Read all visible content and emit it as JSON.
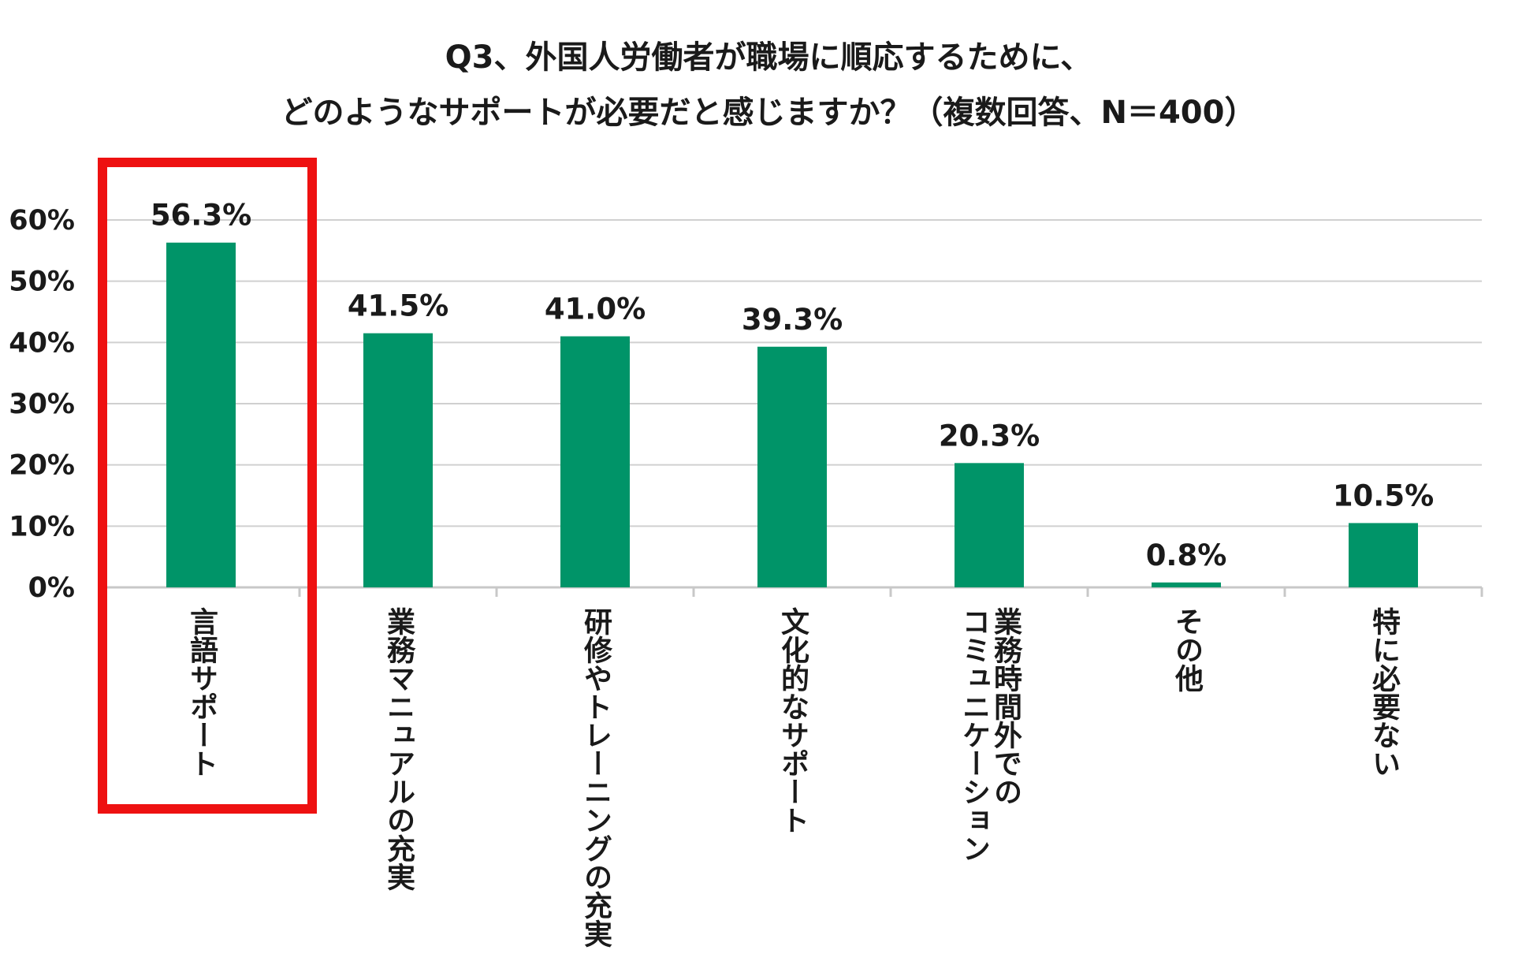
{
  "chart_data": {
    "type": "bar",
    "title_lines": [
      "Q3、外国人労働者が職場に順応するために、",
      "どのようなサポートが必要だと感じますか？（複数回答、N＝400）"
    ],
    "categories": [
      "言語サポート",
      "業務マニュアルの充実",
      "研修やトレーニングの充実",
      "文化的なサポート",
      "業務時間外でのコミュニケーション",
      "その他",
      "特に必要ない"
    ],
    "category_lines": [
      [
        "言語サポート"
      ],
      [
        "業務マニュアルの充実"
      ],
      [
        "研修やトレーニングの充実"
      ],
      [
        "文化的なサポート"
      ],
      [
        "業務時間外での",
        "コミュニケーション"
      ],
      [
        "その他"
      ],
      [
        "特に必要ない"
      ]
    ],
    "values": [
      56.3,
      41.5,
      41.0,
      39.3,
      20.3,
      0.8,
      10.5
    ],
    "value_labels": [
      "56.3%",
      "41.5%",
      "41.0%",
      "39.3%",
      "20.3%",
      "0.8%",
      "10.5%"
    ],
    "yticks": [
      "0%",
      "10%",
      "20%",
      "30%",
      "40%",
      "50%",
      "60%"
    ],
    "ylim": [
      0,
      60
    ],
    "grid": true,
    "highlighted_category": "言語サポート",
    "colors": {
      "bar": "#009468",
      "highlight": "#ee1111",
      "grid": "#d0d0d0",
      "axis": "#c8c8c8"
    }
  }
}
